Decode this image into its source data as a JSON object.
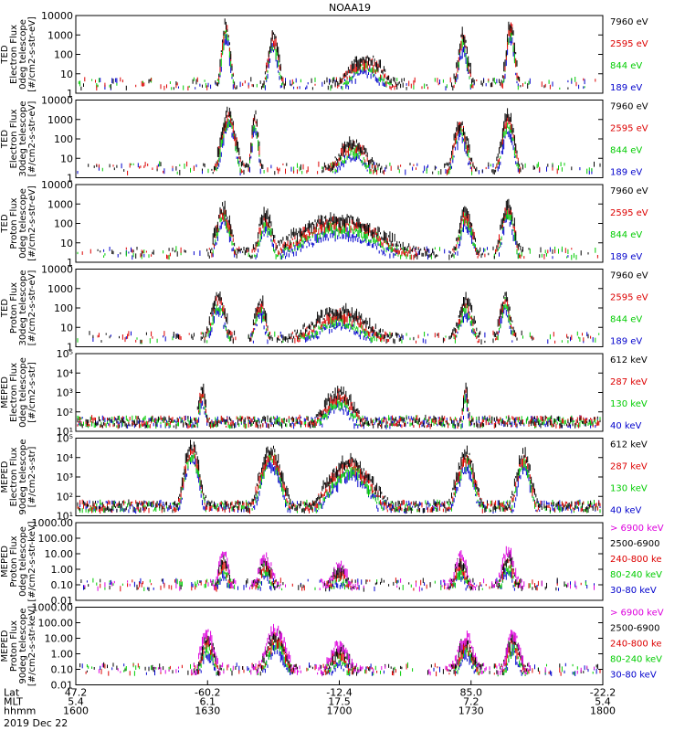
{
  "chart_data": {
    "type": "scatter",
    "title": "NOAA19",
    "date": "2019 Dec 22",
    "panels": [
      {
        "ylabel": [
          "TED",
          "Electron Flux",
          "0deg telescope",
          "[#/cm2-s-str-eV]"
        ],
        "yscale": "log",
        "ylim": [
          1,
          10000
        ],
        "yticks": [
          "1",
          "10",
          "100",
          "1000",
          "10000"
        ],
        "channels": [
          {
            "name": "7960 eV",
            "color": "#000000"
          },
          {
            "name": "2595 eV",
            "color": "#dd0000"
          },
          {
            "name": "844 eV",
            "color": "#00cc00"
          },
          {
            "name": "189 eV",
            "color": "#0000cc"
          }
        ]
      },
      {
        "ylabel": [
          "TED",
          "Electron Flux",
          "30deg telescope",
          "[#/cm2-s-str-eV]"
        ],
        "yscale": "log",
        "ylim": [
          1,
          10000
        ],
        "yticks": [
          "1",
          "10",
          "100",
          "1000",
          "10000"
        ],
        "channels": [
          {
            "name": "7960 eV",
            "color": "#000000"
          },
          {
            "name": "2595 eV",
            "color": "#dd0000"
          },
          {
            "name": "844 eV",
            "color": "#00cc00"
          },
          {
            "name": "189 eV",
            "color": "#0000cc"
          }
        ]
      },
      {
        "ylabel": [
          "TED",
          "Proton Flux",
          "0deg telescope",
          "[#/cm2-s-str-eV]"
        ],
        "yscale": "log",
        "ylim": [
          1,
          10000
        ],
        "yticks": [
          "1",
          "10",
          "100",
          "1000",
          "10000"
        ],
        "channels": [
          {
            "name": "7960 eV",
            "color": "#000000"
          },
          {
            "name": "2595 eV",
            "color": "#dd0000"
          },
          {
            "name": "844 eV",
            "color": "#00cc00"
          },
          {
            "name": "189 eV",
            "color": "#0000cc"
          }
        ]
      },
      {
        "ylabel": [
          "TED",
          "Proton Flux",
          "30deg telescope",
          "[#/cm2-s-str-eV]"
        ],
        "yscale": "log",
        "ylim": [
          1,
          10000
        ],
        "yticks": [
          "1",
          "10",
          "100",
          "1000",
          "10000"
        ],
        "channels": [
          {
            "name": "7960 eV",
            "color": "#000000"
          },
          {
            "name": "2595 eV",
            "color": "#dd0000"
          },
          {
            "name": "844 eV",
            "color": "#00cc00"
          },
          {
            "name": "189 eV",
            "color": "#0000cc"
          }
        ]
      },
      {
        "ylabel": [
          "MEPED",
          "Electron Flux",
          "0deg telescope",
          "[#/cm2-s-str]"
        ],
        "yscale": "log",
        "ylim": [
          10,
          100000
        ],
        "yticks": [
          "10¹",
          "10²",
          "10³",
          "10⁴",
          "10⁵"
        ],
        "channels": [
          {
            "name": "612 keV",
            "color": "#000000"
          },
          {
            "name": "287 keV",
            "color": "#dd0000"
          },
          {
            "name": "130 keV",
            "color": "#00cc00"
          },
          {
            "name": "40 keV",
            "color": "#0000cc"
          }
        ]
      },
      {
        "ylabel": [
          "MEPED",
          "Electron Flux",
          "90deg telescope",
          "[#/cm2-s-str]"
        ],
        "yscale": "log",
        "ylim": [
          10,
          100000
        ],
        "yticks": [
          "10¹",
          "10²",
          "10³",
          "10⁴",
          "10⁵"
        ],
        "channels": [
          {
            "name": "612 keV",
            "color": "#000000"
          },
          {
            "name": "287 keV",
            "color": "#dd0000"
          },
          {
            "name": "130 keV",
            "color": "#00cc00"
          },
          {
            "name": "40 keV",
            "color": "#0000cc"
          }
        ]
      },
      {
        "ylabel": [
          "MEPED",
          "Proton Flux",
          "0deg telescope",
          "[#/cm2-s-str-keV]"
        ],
        "yscale": "log",
        "ylim": [
          0.01,
          1000
        ],
        "yticks": [
          "0.01",
          "0.10",
          "1.00",
          "10.00",
          "100.00",
          "1000.00"
        ],
        "channels": [
          {
            "name": "> 6900 keV",
            "color": "#dd00dd"
          },
          {
            "name": "2500-6900",
            "color": "#000000"
          },
          {
            "name": "240-800 ke",
            "color": "#dd0000"
          },
          {
            "name": "80-240 keV",
            "color": "#00cc00"
          },
          {
            "name": "30-80 keV",
            "color": "#0000cc"
          }
        ]
      },
      {
        "ylabel": [
          "MEPED",
          "Proton Flux",
          "90deg telescope",
          "[#/cm2-s-str-keV]"
        ],
        "yscale": "log",
        "ylim": [
          0.01,
          1000
        ],
        "yticks": [
          "0.01",
          "0.10",
          "1.00",
          "10.00",
          "100.00",
          "1000.00"
        ],
        "channels": [
          {
            "name": "> 6900 keV",
            "color": "#dd00dd"
          },
          {
            "name": "2500-6900",
            "color": "#000000"
          },
          {
            "name": "240-800 ke",
            "color": "#dd0000"
          },
          {
            "name": "80-240 keV",
            "color": "#00cc00"
          },
          {
            "name": "30-80 keV",
            "color": "#0000cc"
          }
        ]
      }
    ],
    "x_axis": {
      "row_labels": [
        "Lat",
        "MLT",
        "hhmm"
      ],
      "ticks": [
        {
          "lat": "47.2",
          "mlt": "5.4",
          "hhmm": "1600"
        },
        {
          "lat": "-60.2",
          "mlt": "6.1",
          "hhmm": "1630"
        },
        {
          "lat": "-12.4",
          "mlt": "17.5",
          "hhmm": "1700"
        },
        {
          "lat": "85.0",
          "mlt": "7.2",
          "hhmm": "1730"
        },
        {
          "lat": "-22.2",
          "mlt": "5.4",
          "hhmm": "1800"
        }
      ]
    }
  }
}
